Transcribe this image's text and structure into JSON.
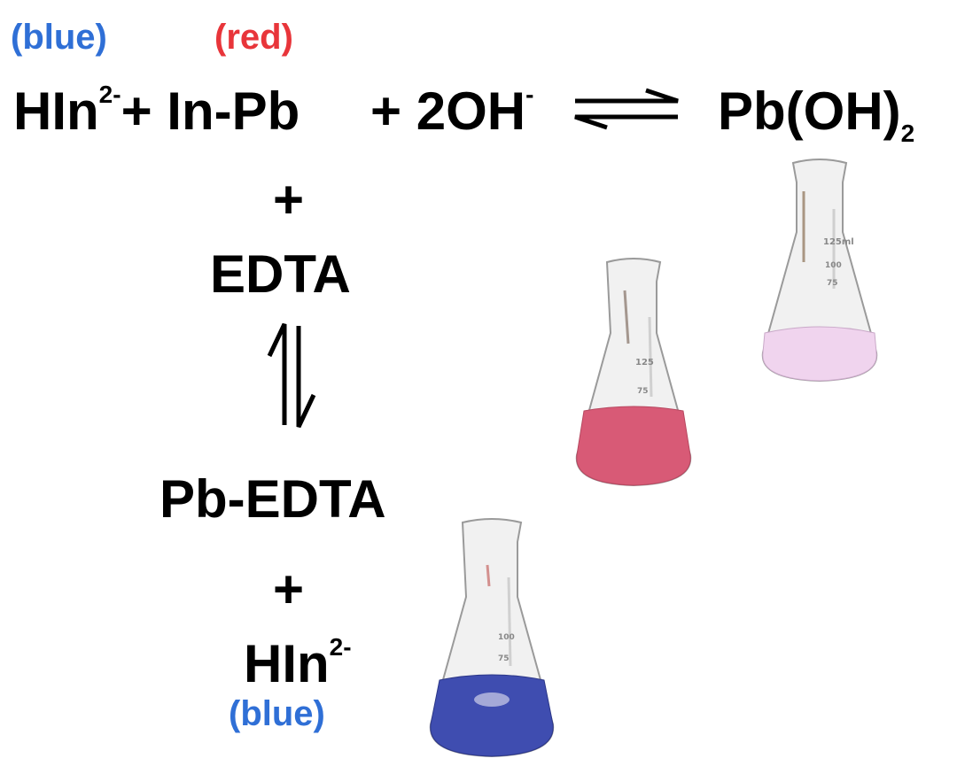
{
  "colors": {
    "blue": "#2f6fd6",
    "red": "#e8353a",
    "black": "#000000"
  },
  "top": {
    "label_blue": "(blue)",
    "label_red": "(red)",
    "hin": "HIn",
    "hin_charge": "2-",
    "plus1": "+",
    "inpb": "In-Pb",
    "plus2": "+",
    "oh": "2OH",
    "oh_charge": "-",
    "product": "Pb(OH)",
    "product_sub": "2"
  },
  "column": {
    "plus": "+",
    "edta": "EDTA",
    "pb_edta": "Pb-EDTA",
    "plus2": "+",
    "hin": "HIn",
    "hin_charge": "2-",
    "label_blue": "(blue)"
  },
  "flasks": [
    {
      "name": "pink-precipitate-flask",
      "liquid": "#f0d4ee"
    },
    {
      "name": "red-solution-flask",
      "liquid": "#d85a76"
    },
    {
      "name": "blue-solution-flask",
      "liquid": "#3f4db0"
    }
  ]
}
